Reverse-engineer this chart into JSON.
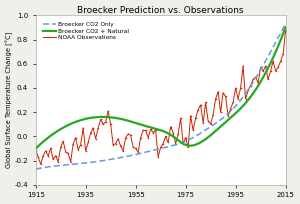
{
  "title": "Broecker Prediction vs. Observations",
  "ylabel": "Global Surface Temperature Change [°C]",
  "xlim": [
    1915,
    2015
  ],
  "ylim": [
    -0.4,
    1.0
  ],
  "xticks": [
    1915,
    1935,
    1955,
    1975,
    1995,
    2015
  ],
  "yticks": [
    -0.4,
    -0.2,
    0.0,
    0.2,
    0.4,
    0.6,
    0.8,
    1.0
  ],
  "legend": {
    "broecker_co2_natural": "Broecker CO2 + Natural",
    "broecker_co2_only": "Broecker CO2 Only",
    "noaa": "NOAA Observations"
  },
  "colors": {
    "broecker_co2_natural": "#22aa22",
    "broecker_co2_only": "#6699dd",
    "noaa": "#cc2200"
  },
  "background": "#f0f0eb",
  "plot_background": "#ffffff"
}
